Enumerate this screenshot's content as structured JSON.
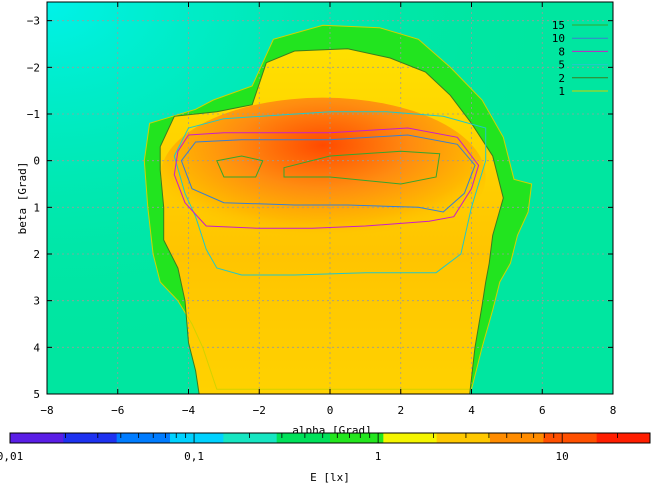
{
  "chart_data": {
    "type": "heatmap",
    "title": "",
    "xlabel": "alpha [Grad]",
    "ylabel": "beta [Grad]",
    "xlim": [
      -8,
      8
    ],
    "ylim": [
      -3.4,
      5
    ],
    "y_inverted": true,
    "x_ticks": [
      -8,
      -6,
      -4,
      -2,
      0,
      2,
      4,
      6,
      8
    ],
    "x_tick_labels": [
      "−8",
      "−6",
      "−4",
      "−2",
      "0",
      "2",
      "4",
      "6",
      "8"
    ],
    "y_ticks": [
      -3,
      -2,
      -1,
      0,
      1,
      2,
      3,
      4,
      5
    ],
    "y_tick_labels": [
      "−3",
      "−2",
      "−1",
      "0",
      "1",
      "2",
      "3",
      "4",
      "5"
    ],
    "grid": true,
    "legend_position": "top-right",
    "contour_levels": [
      {
        "name": "15",
        "value": 15,
        "color": "#36a52e"
      },
      {
        "name": "10",
        "value": 10,
        "color": "#3a7fd0"
      },
      {
        "name": "8",
        "value": 8,
        "color": "#c81ec8"
      },
      {
        "name": "5",
        "value": 5,
        "color": "#22c8c8"
      },
      {
        "name": "2",
        "value": 2,
        "color": "#3b7d1e"
      },
      {
        "name": "1",
        "value": 1,
        "color": "#d2d200"
      }
    ],
    "contours": [
      {
        "level": 1,
        "points": [
          [
            -5.1,
            -0.8
          ],
          [
            -3.8,
            -1.1
          ],
          [
            -3.3,
            -1.3
          ],
          [
            -2.2,
            -1.6
          ],
          [
            -1.6,
            -2.6
          ],
          [
            -0.2,
            -2.9
          ],
          [
            1.4,
            -2.85
          ],
          [
            2.5,
            -2.6
          ],
          [
            3.4,
            -2.0
          ],
          [
            4.3,
            -1.3
          ],
          [
            4.9,
            -0.5
          ],
          [
            5.2,
            0.4
          ],
          [
            5.7,
            0.5
          ],
          [
            5.6,
            1.1
          ],
          [
            5.3,
            1.6
          ],
          [
            5.1,
            2.2
          ],
          [
            4.8,
            2.6
          ],
          [
            4.6,
            3.2
          ],
          [
            4.3,
            4.0
          ],
          [
            4.0,
            4.9
          ],
          [
            -3.2,
            4.9
          ],
          [
            -3.6,
            4.0
          ],
          [
            -3.9,
            3.5
          ],
          [
            -4.3,
            3.0
          ],
          [
            -4.8,
            2.6
          ],
          [
            -5.0,
            2.0
          ],
          [
            -5.15,
            1.0
          ],
          [
            -5.25,
            0.0
          ],
          [
            -5.1,
            -0.8
          ]
        ]
      },
      {
        "level": 2,
        "points": [
          [
            -4.8,
            -0.3
          ],
          [
            -4.4,
            -0.95
          ],
          [
            -3.2,
            -1.05
          ],
          [
            -2.2,
            -1.2
          ],
          [
            -1.8,
            -2.1
          ],
          [
            -1.0,
            -2.35
          ],
          [
            0.5,
            -2.4
          ],
          [
            1.7,
            -2.2
          ],
          [
            2.7,
            -1.9
          ],
          [
            3.4,
            -1.4
          ],
          [
            4.0,
            -0.8
          ],
          [
            4.6,
            -0.1
          ],
          [
            4.9,
            0.8
          ],
          [
            4.6,
            1.6
          ],
          [
            4.5,
            2.2
          ],
          [
            4.4,
            2.6
          ],
          [
            4.3,
            3.1
          ],
          [
            4.1,
            4.0
          ],
          [
            3.95,
            5.0
          ],
          [
            -3.7,
            5.0
          ],
          [
            -3.8,
            4.5
          ],
          [
            -4.0,
            3.9
          ],
          [
            -4.1,
            3.0
          ],
          [
            -4.3,
            2.3
          ],
          [
            -4.7,
            1.7
          ],
          [
            -4.7,
            1.0
          ],
          [
            -4.8,
            0.2
          ],
          [
            -4.8,
            -0.3
          ]
        ]
      },
      {
        "level": 5,
        "points": [
          [
            -4.4,
            -0.1
          ],
          [
            -4.0,
            -0.7
          ],
          [
            -3.0,
            -0.9
          ],
          [
            0.0,
            -1.05
          ],
          [
            1.6,
            -1.05
          ],
          [
            3.2,
            -0.95
          ],
          [
            4.4,
            -0.7
          ],
          [
            4.4,
            0.0
          ],
          [
            4.0,
            1.0
          ],
          [
            3.7,
            2.0
          ],
          [
            3.0,
            2.4
          ],
          [
            1.0,
            2.4
          ],
          [
            -1.0,
            2.45
          ],
          [
            -2.5,
            2.45
          ],
          [
            -3.2,
            2.3
          ],
          [
            -3.5,
            1.9
          ],
          [
            -3.8,
            1.2
          ],
          [
            -4.1,
            0.7
          ],
          [
            -4.4,
            -0.1
          ]
        ]
      },
      {
        "level": 8,
        "points": [
          [
            -4.3,
            -0.2
          ],
          [
            -4.0,
            -0.55
          ],
          [
            -3.0,
            -0.6
          ],
          [
            0.0,
            -0.6
          ],
          [
            2.2,
            -0.7
          ],
          [
            3.6,
            -0.5
          ],
          [
            4.2,
            0.1
          ],
          [
            4.0,
            0.6
          ],
          [
            3.5,
            1.2
          ],
          [
            2.8,
            1.3
          ],
          [
            1.0,
            1.4
          ],
          [
            -0.5,
            1.45
          ],
          [
            -2.0,
            1.45
          ],
          [
            -3.5,
            1.4
          ],
          [
            -4.1,
            0.9
          ],
          [
            -4.4,
            0.3
          ],
          [
            -4.3,
            -0.2
          ]
        ]
      },
      {
        "level": 10,
        "points": [
          [
            -4.2,
            0.0
          ],
          [
            -3.8,
            -0.4
          ],
          [
            -2.5,
            -0.45
          ],
          [
            0.0,
            -0.45
          ],
          [
            2.2,
            -0.55
          ],
          [
            3.6,
            -0.35
          ],
          [
            4.1,
            0.1
          ],
          [
            3.8,
            0.7
          ],
          [
            3.2,
            1.1
          ],
          [
            2.5,
            1.0
          ],
          [
            0.5,
            0.95
          ],
          [
            -1.0,
            0.95
          ],
          [
            -3.0,
            0.9
          ],
          [
            -3.9,
            0.6
          ],
          [
            -4.2,
            0.0
          ]
        ]
      },
      {
        "level": 15,
        "points": [
          [
            -3.2,
            0.0
          ],
          [
            -2.5,
            -0.1
          ],
          [
            -1.9,
            0.0
          ],
          [
            -2.1,
            0.35
          ],
          [
            -3.0,
            0.35
          ],
          [
            -3.2,
            0.0
          ]
        ]
      },
      {
        "level": 15,
        "points": [
          [
            -1.3,
            0.15
          ],
          [
            0.0,
            -0.1
          ],
          [
            2.0,
            -0.2
          ],
          [
            3.1,
            -0.15
          ],
          [
            3.0,
            0.35
          ],
          [
            2.0,
            0.5
          ],
          [
            0.0,
            0.35
          ],
          [
            -1.3,
            0.35
          ],
          [
            -1.3,
            0.15
          ]
        ]
      }
    ],
    "colorbar": {
      "label": "E [lx]",
      "scale": "log",
      "range": [
        0.01,
        30
      ],
      "ticks": [
        0.01,
        0.1,
        1,
        10
      ],
      "tick_labels": [
        "0,01",
        "0,1",
        "1",
        "10"
      ],
      "band_colors": [
        "#5a1ee6",
        "#1e32f0",
        "#007cff",
        "#00d2ff",
        "#16e6c2",
        "#00e15a",
        "#24e61e",
        "#f5f500",
        "#ffc800",
        "#ff8c00",
        "#ff5000",
        "#ff1e00"
      ]
    },
    "background_colors": {
      "outer": "#00e6a0",
      "far_corner": "#00f0d8",
      "green_band": "#22e41f",
      "yellow_region": "#ffd800",
      "orange_center": "#ff5a00"
    }
  }
}
